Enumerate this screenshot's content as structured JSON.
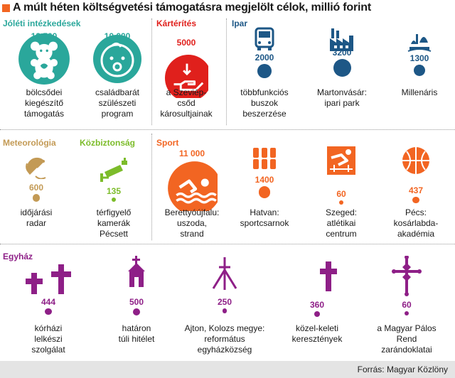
{
  "title": "A múlt héten költségvetési támogatásra megjelölt célok, millió forint",
  "source": "Forrás: Magyar Közlöny",
  "colors": {
    "Jóléti intézkedések": "#2aa79b",
    "Kártérítés": "#e0201c",
    "Ipar": "#1d5786",
    "Meteorológia": "#c39a55",
    "Közbiztonság": "#7cbc2a",
    "Sport": "#f26522",
    "Egyház": "#8e1f87"
  },
  "chart_data": {
    "type": "bubble",
    "unit": "millió forint",
    "categories": [
      {
        "name": "Jóléti intézkedések",
        "items": [
          {
            "value": 13500,
            "value_label": "13 500",
            "label": [
              "bölcsődei",
              "kiegészítő",
              "támogatás"
            ],
            "icon": "teddy-bear-icon"
          },
          {
            "value": 10000,
            "value_label": "10 000",
            "label": [
              "családbarát",
              "szülészeti",
              "program"
            ],
            "icon": "baby-face-icon"
          }
        ]
      },
      {
        "name": "Kártérítés",
        "items": [
          {
            "value": 5000,
            "value_label": "5000",
            "label": [
              "a Szeviép-",
              "csőd",
              "károsultjainak"
            ],
            "icon": "hand-coin-icon"
          }
        ]
      },
      {
        "name": "Ipar",
        "items": [
          {
            "value": 2000,
            "value_label": "2000",
            "label": [
              "többfunkciós",
              "buszok",
              "beszerzése"
            ],
            "icon": "bus-icon"
          },
          {
            "value": 3200,
            "value_label": "3200",
            "label": [
              "Martonvásár:",
              "ipari park"
            ],
            "icon": "factory-icon"
          },
          {
            "value": 1300,
            "value_label": "1300",
            "label": [
              "Millenáris"
            ],
            "icon": "park-icon"
          }
        ]
      },
      {
        "name": "Meteorológia",
        "items": [
          {
            "value": 600,
            "value_label": "600",
            "label": [
              "időjárási",
              "radar"
            ],
            "icon": "radar-dish-icon"
          }
        ]
      },
      {
        "name": "Közbiztonság",
        "items": [
          {
            "value": 135,
            "value_label": "135",
            "label": [
              "térfigyelő",
              "kamerák",
              "Pécsett"
            ],
            "icon": "cctv-camera-icon"
          }
        ]
      },
      {
        "name": "Sport",
        "items": [
          {
            "value": 11000,
            "value_label": "11 000",
            "label": [
              "Berettyóújfalu:",
              "uszoda,",
              "strand"
            ],
            "icon": "swimmer-icon"
          },
          {
            "value": 1400,
            "value_label": "1400",
            "label": [
              "Hatvan:",
              "sportcsarnok"
            ],
            "icon": "stadium-seats-icon"
          },
          {
            "value": 60,
            "value_label": "60",
            "label": [
              "Szeged:",
              "atlétikai",
              "centrum"
            ],
            "icon": "hurdler-icon"
          },
          {
            "value": 437,
            "value_label": "437",
            "label": [
              "Pécs:",
              "kosárlabda-",
              "akadémia"
            ],
            "icon": "basketball-icon"
          }
        ]
      },
      {
        "name": "Egyház",
        "items": [
          {
            "value": 444,
            "value_label": "444",
            "label": [
              "kórházi",
              "lelkészi",
              "szolgálat"
            ],
            "icon": "two-crosses-icon"
          },
          {
            "value": 500,
            "value_label": "500",
            "label": [
              "határon",
              "túli hitélet"
            ],
            "icon": "church-icon"
          },
          {
            "value": 250,
            "value_label": "250",
            "label": [
              "Ajton, Kolozs megye:",
              "református",
              "egyházközség"
            ],
            "icon": "reformed-cross-icon"
          },
          {
            "value": 360,
            "value_label": "360",
            "label": [
              "közel-keleti",
              "keresztények"
            ],
            "icon": "crescent-cross-icon"
          },
          {
            "value": 60,
            "value_label": "60",
            "label": [
              "a Magyar Pálos",
              "Rend",
              "zarándoklatai"
            ],
            "icon": "pauline-cross-icon"
          }
        ]
      }
    ]
  }
}
